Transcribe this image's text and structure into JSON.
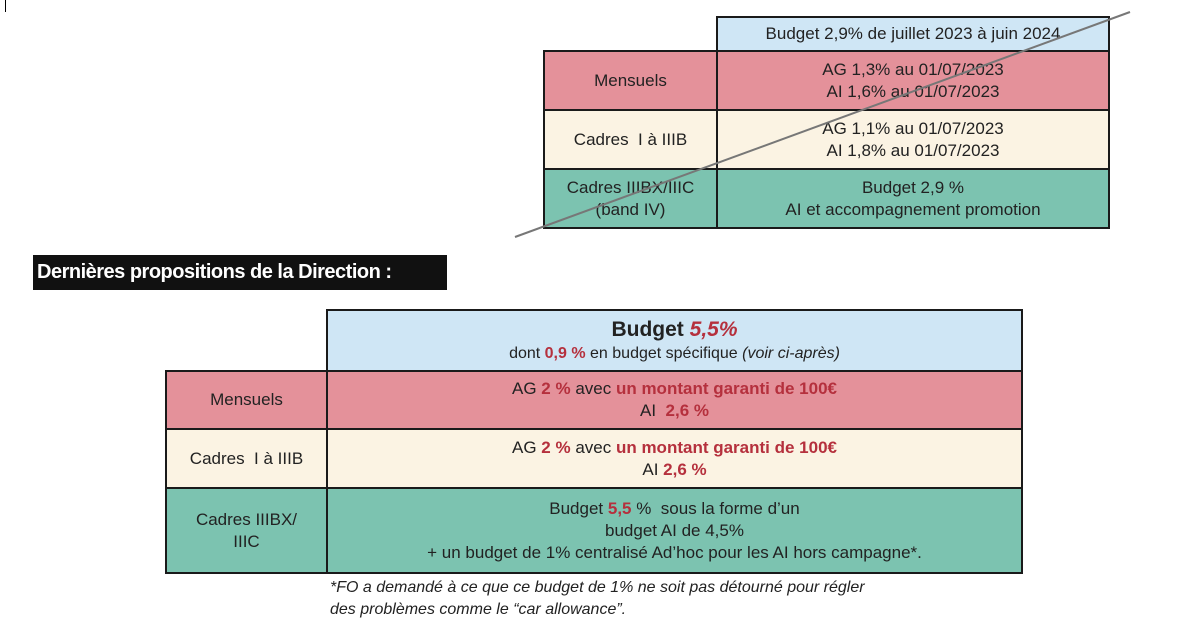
{
  "old_table": {
    "header": "Budget 2,9% de juillet 2023 à juin 2024",
    "rows": [
      {
        "label": "Mensuels",
        "line1": "AG 1,3% au 01/07/2023",
        "line2": "AI 1,6% au 01/07/2023"
      },
      {
        "label": "Cadres  I à IIIB",
        "line1": "AG 1,1% au 01/07/2023",
        "line2": "AI 1,8% au 01/07/2023"
      },
      {
        "label1": "Cadres IIIBX/IIIC",
        "label2": "(band IV)",
        "line1": "Budget 2,9 %",
        "line2": "AI et accompagnement promotion"
      }
    ]
  },
  "heading": "Dernières propositions de la Direction :",
  "new_table": {
    "header": {
      "t1": "Budget ",
      "t2": "5,5%",
      "s1": "dont ",
      "s2": "0,9 %",
      "s3": " en budget spécifique ",
      "s4": "(voir ci-après)"
    },
    "rows": [
      {
        "label": "Mensuels",
        "a": "AG ",
        "b": "2 %",
        "c": " avec ",
        "d": "un montant garanti de 100€",
        "e": "AI  ",
        "f": "2,6 %"
      },
      {
        "label": "Cadres  I à IIIB",
        "a": "AG ",
        "b": "2 %",
        "c": " avec ",
        "d": "un montant garanti de 100€",
        "e": "AI ",
        "f": "2,6 %"
      },
      {
        "label1": "Cadres IIIBX/",
        "label2": "IIIC",
        "a": "Budget ",
        "b": "5,5",
        "c": " %  sous la forme d’un",
        "d": "budget AI de 4,5%",
        "e": "+ un budget de 1% centralisé Ad’hoc pour les AI hors campagne*."
      }
    ]
  },
  "footnote": {
    "line1": "*FO a demandé à ce que ce budget de 1% ne soit pas détourné pour régler",
    "line2": "des problèmes comme le “car allowance”."
  },
  "colors": {
    "header": "#cfe6f5",
    "mensuels": "#e4919a",
    "cadres": "#fbf3e3",
    "cadres_sup": "#7cc3b0",
    "highlight": "#b5303d"
  }
}
